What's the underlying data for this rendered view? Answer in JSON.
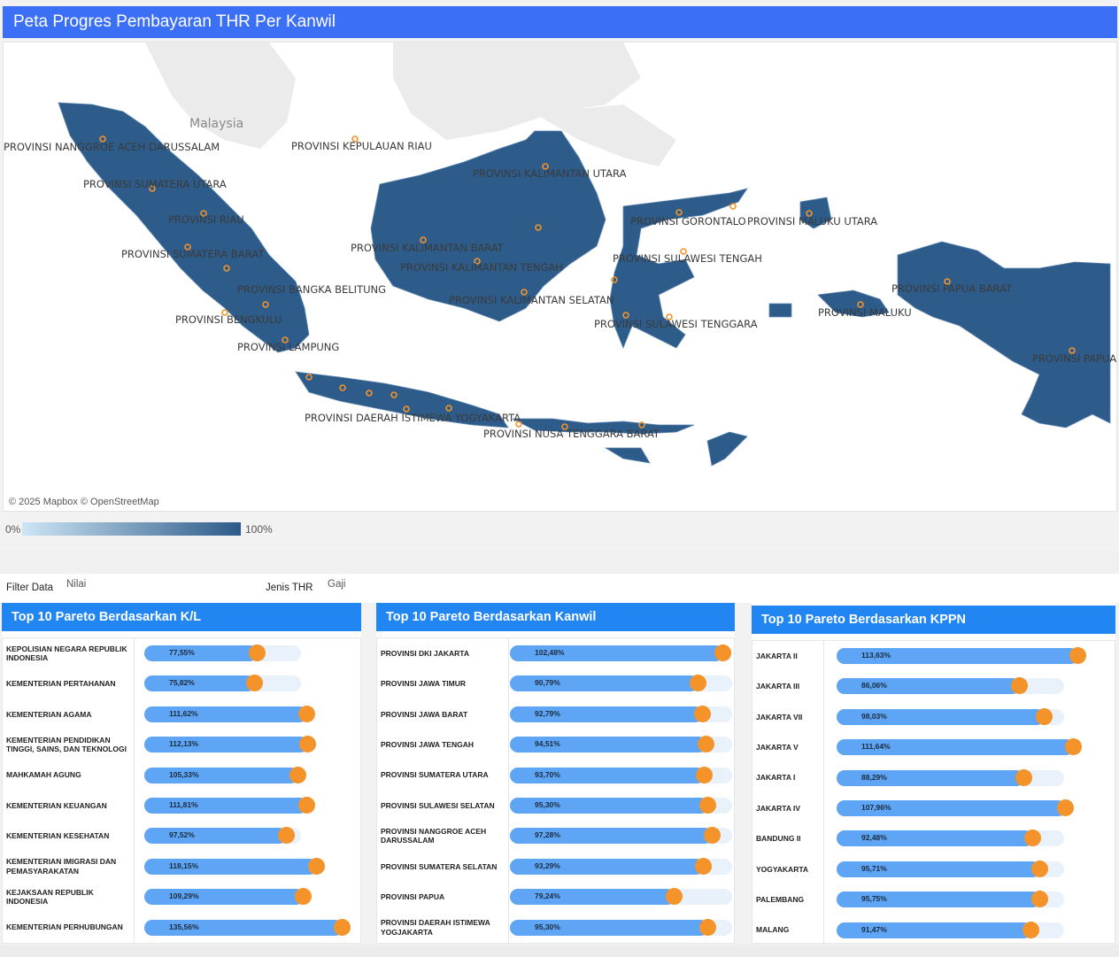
{
  "title": "Peta Progres Pembayaran THR Per Kanwil",
  "map": {
    "country_label": "Malaysia",
    "copyright": "© 2025 Mapbox © OpenStreetMap",
    "land_color": "#2e5c8a",
    "labels": [
      "PROVINSI NANGGROE ACEH DARUSSALAM",
      "PROVINSI KEPULAUAN RIAU",
      "PROVINSI SUMATERA UTARA",
      "PROVINSI KALIMANTAN UTARA",
      "PROVINSI RIAU",
      "PROVINSI GORONTALO",
      "PROVINSI MALUKU UTARA",
      "PROVINSI KALIMANTAN BARAT",
      "PROVINSI SUMATERA BARAT",
      "PROVINSI SULAWESI TENGAH",
      "PROVINSI KALIMANTAN TENGAH",
      "PROVINSI BANGKA BELITUNG",
      "PROVINSI PAPUA BARAT",
      "PROVINSI KALIMANTAN SELATAN",
      "PROVINSI MALUKU",
      "PROVINSI BENGKULU",
      "PROVINSI SULAWESI TENGGARA",
      "PROVINSI LAMPUNG",
      "PROVINSI PAPUA",
      "PROVINSI DAERAH ISTIMEWA YOGYAKARTA",
      "PROVINSI NUSA TENGGARA BARAT"
    ]
  },
  "legend": {
    "min": "0%",
    "max": "100%"
  },
  "filters": {
    "filter_data_label": "Filter Data",
    "filter_data_value": "Nilai",
    "jenis_thr_label": "Jenis THR",
    "jenis_thr_value": "Gaji"
  },
  "panels": [
    {
      "title": "Top 10 Pareto Berdasarkan K/L",
      "rows": [
        {
          "label": "KEPOLISIAN NEGARA REPUBLIK INDONESIA",
          "value": "77,55%",
          "pct": 77.55
        },
        {
          "label": "KEMENTERIAN PERTAHANAN",
          "value": "75,82%",
          "pct": 75.82
        },
        {
          "label": "KEMENTERIAN AGAMA",
          "value": "111,62%",
          "pct": 111.62
        },
        {
          "label": "KEMENTERIAN PENDIDIKAN TINGGI, SAINS, DAN TEKNOLOGI",
          "value": "112,13%",
          "pct": 112.13
        },
        {
          "label": "MAHKAMAH AGUNG",
          "value": "105,33%",
          "pct": 105.33
        },
        {
          "label": "KEMENTERIAN KEUANGAN",
          "value": "111,81%",
          "pct": 111.81
        },
        {
          "label": "KEMENTERIAN KESEHATAN",
          "value": "97,52%",
          "pct": 97.52
        },
        {
          "label": "KEMENTERIAN IMIGRASI DAN PEMASYARAKATAN",
          "value": "118,15%",
          "pct": 118.15
        },
        {
          "label": "KEJAKSAAN REPUBLIK INDONESIA",
          "value": "109,29%",
          "pct": 109.29
        },
        {
          "label": "KEMENTERIAN PERHUBUNGAN",
          "value": "135,56%",
          "pct": 135.56
        }
      ]
    },
    {
      "title": "Top 10 Pareto Berdasarkan Kanwil",
      "rows": [
        {
          "label": "PROVINSI DKI JAKARTA",
          "value": "102,48%",
          "pct": 102.48
        },
        {
          "label": "PROVINSI JAWA TIMUR",
          "value": "90,79%",
          "pct": 90.79
        },
        {
          "label": "PROVINSI JAWA BARAT",
          "value": "92,79%",
          "pct": 92.79
        },
        {
          "label": "PROVINSI JAWA TENGAH",
          "value": "94,51%",
          "pct": 94.51
        },
        {
          "label": "PROVINSI SUMATERA UTARA",
          "value": "93,70%",
          "pct": 93.7
        },
        {
          "label": "PROVINSI SULAWESI SELATAN",
          "value": "95,30%",
          "pct": 95.3
        },
        {
          "label": "PROVINSI NANGGROE ACEH DARUSSALAM",
          "value": "97,28%",
          "pct": 97.28
        },
        {
          "label": "PROVINSI SUMATERA SELATAN",
          "value": "93,29%",
          "pct": 93.29
        },
        {
          "label": "PROVINSI PAPUA",
          "value": "79,24%",
          "pct": 79.24
        },
        {
          "label": "PROVINSI DAERAH ISTIMEWA YOGJAKARTA",
          "value": "95,30%",
          "pct": 95.3
        }
      ]
    },
    {
      "title": "Top 10 Pareto Berdasarkan KPPN",
      "rows": [
        {
          "label": "JAKARTA II",
          "value": "113,63%",
          "pct": 113.63
        },
        {
          "label": "JAKARTA III",
          "value": "86,06%",
          "pct": 86.06
        },
        {
          "label": "JAKARTA VII",
          "value": "98,03%",
          "pct": 98.03
        },
        {
          "label": "JAKARTA V",
          "value": "111,64%",
          "pct": 111.64
        },
        {
          "label": "JAKARTA I",
          "value": "88,29%",
          "pct": 88.29
        },
        {
          "label": "JAKARTA IV",
          "value": "107,96%",
          "pct": 107.96
        },
        {
          "label": "BANDUNG II",
          "value": "92,48%",
          "pct": 92.48
        },
        {
          "label": "YOGYAKARTA",
          "value": "95,71%",
          "pct": 95.71
        },
        {
          "label": "PALEMBANG",
          "value": "95,75%",
          "pct": 95.75
        },
        {
          "label": "MALANG",
          "value": "91,47%",
          "pct": 91.47
        }
      ]
    }
  ]
}
